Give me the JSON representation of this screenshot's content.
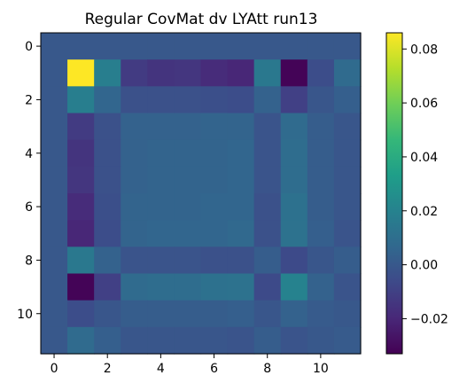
{
  "chart_data": {
    "type": "heatmap",
    "title": "Regular CovMat dv LYAtt run13",
    "xlabel": "",
    "ylabel": "",
    "x_ticks": [
      "0",
      "2",
      "4",
      "6",
      "8",
      "10"
    ],
    "y_ticks": [
      "0",
      "2",
      "4",
      "6",
      "8",
      "10"
    ],
    "xlim": [
      -0.5,
      11.5
    ],
    "ylim": [
      11.5,
      -0.5
    ],
    "colormap": "viridis",
    "colorbar": {
      "vmin": -0.033,
      "vmax": 0.086,
      "ticks": [
        -0.02,
        0.0,
        0.02,
        0.04,
        0.06,
        0.08
      ],
      "tick_labels": [
        "−0.02",
        "0.00",
        "0.02",
        "0.04",
        "0.06",
        "0.08"
      ]
    },
    "values": [
      [
        0.0,
        0.0,
        0.0,
        0.0,
        0.0,
        0.0,
        0.0,
        0.0,
        0.0,
        0.0,
        0.0,
        0.0
      ],
      [
        0.0,
        0.086,
        0.018,
        -0.012,
        -0.015,
        -0.014,
        -0.018,
        -0.02,
        0.015,
        -0.032,
        -0.005,
        0.008
      ],
      [
        0.0,
        0.018,
        0.006,
        -0.003,
        -0.003,
        -0.003,
        -0.004,
        -0.005,
        0.004,
        -0.01,
        -0.001,
        0.003
      ],
      [
        0.0,
        -0.012,
        -0.003,
        0.004,
        0.004,
        0.004,
        0.005,
        0.005,
        -0.002,
        0.008,
        0.002,
        -0.001
      ],
      [
        0.0,
        -0.015,
        -0.003,
        0.004,
        0.005,
        0.005,
        0.005,
        0.006,
        -0.002,
        0.009,
        0.002,
        -0.001
      ],
      [
        0.0,
        -0.014,
        -0.003,
        0.004,
        0.005,
        0.005,
        0.005,
        0.006,
        -0.002,
        0.009,
        0.002,
        -0.001
      ],
      [
        0.0,
        -0.018,
        -0.004,
        0.005,
        0.005,
        0.005,
        0.006,
        0.006,
        -0.003,
        0.011,
        0.002,
        -0.001
      ],
      [
        0.0,
        -0.02,
        -0.005,
        0.005,
        0.006,
        0.006,
        0.006,
        0.007,
        -0.003,
        0.012,
        0.003,
        -0.002
      ],
      [
        0.0,
        0.015,
        0.004,
        -0.002,
        -0.002,
        -0.002,
        -0.003,
        -0.003,
        0.002,
        -0.006,
        -0.001,
        0.002
      ],
      [
        0.0,
        -0.032,
        -0.01,
        0.008,
        0.009,
        0.009,
        0.011,
        0.012,
        -0.006,
        0.02,
        0.004,
        -0.002
      ],
      [
        0.0,
        -0.005,
        -0.001,
        0.002,
        0.002,
        0.002,
        0.002,
        0.003,
        -0.001,
        0.004,
        0.001,
        0.0
      ],
      [
        0.0,
        0.008,
        0.003,
        -0.001,
        -0.001,
        -0.001,
        -0.001,
        -0.002,
        0.002,
        -0.002,
        0.0,
        0.001
      ]
    ]
  }
}
